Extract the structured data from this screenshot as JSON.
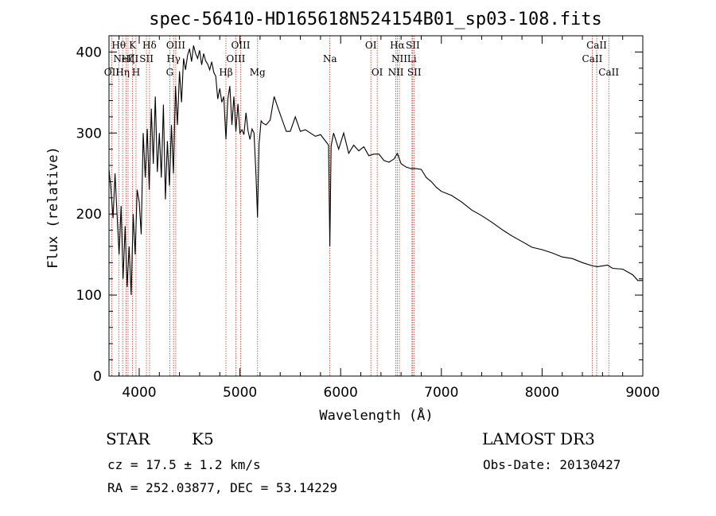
{
  "chart_data": {
    "type": "line",
    "title": "spec-56410-HD165618N524154B01_sp03-108.fits",
    "xlabel": "Wavelength (Å)",
    "ylabel": "Flux (relative)",
    "xlim": [
      3700,
      9000
    ],
    "ylim": [
      0,
      420
    ],
    "x_ticks": [
      4000,
      5000,
      6000,
      7000,
      8000,
      9000
    ],
    "y_ticks": [
      0,
      100,
      200,
      300,
      400
    ],
    "series": [
      {
        "name": "flux",
        "x": [
          3700,
          3720,
          3740,
          3760,
          3780,
          3800,
          3820,
          3840,
          3860,
          3880,
          3900,
          3920,
          3940,
          3960,
          3980,
          4000,
          4020,
          4040,
          4060,
          4080,
          4100,
          4120,
          4140,
          4160,
          4180,
          4200,
          4220,
          4240,
          4260,
          4280,
          4300,
          4320,
          4340,
          4360,
          4380,
          4400,
          4420,
          4440,
          4460,
          4480,
          4500,
          4520,
          4540,
          4560,
          4580,
          4600,
          4620,
          4640,
          4660,
          4680,
          4700,
          4720,
          4740,
          4760,
          4780,
          4800,
          4820,
          4840,
          4861,
          4880,
          4900,
          4920,
          4940,
          4960,
          4980,
          5000,
          5020,
          5040,
          5060,
          5080,
          5100,
          5120,
          5140,
          5160,
          5175,
          5190,
          5210,
          5230,
          5260,
          5300,
          5340,
          5380,
          5420,
          5460,
          5500,
          5550,
          5600,
          5650,
          5700,
          5750,
          5800,
          5850,
          5880,
          5893,
          5905,
          5930,
          5980,
          6030,
          6080,
          6130,
          6180,
          6230,
          6280,
          6330,
          6380,
          6430,
          6480,
          6530,
          6563,
          6600,
          6650,
          6700,
          6750,
          6800,
          6850,
          6900,
          6950,
          7000,
          7100,
          7200,
          7300,
          7400,
          7500,
          7600,
          7700,
          7800,
          7900,
          8000,
          8100,
          8200,
          8300,
          8400,
          8500,
          8550,
          8600,
          8650,
          8700,
          8800,
          8900,
          8950,
          9000
        ],
        "y": [
          255,
          230,
          195,
          250,
          200,
          150,
          210,
          120,
          185,
          110,
          160,
          100,
          200,
          150,
          230,
          215,
          175,
          300,
          245,
          305,
          230,
          330,
          262,
          345,
          252,
          300,
          245,
          335,
          218,
          290,
          235,
          310,
          250,
          358,
          310,
          376,
          338,
          392,
          378,
          396,
          404,
          388,
          408,
          398,
          392,
          402,
          384,
          398,
          389,
          385,
          378,
          388,
          375,
          370,
          342,
          355,
          338,
          345,
          292,
          342,
          358,
          310,
          345,
          302,
          336,
          300,
          304,
          298,
          325,
          303,
          292,
          305,
          300,
          248,
          196,
          286,
          315,
          312,
          310,
          316,
          345,
          330,
          316,
          302,
          302,
          320,
          302,
          304,
          300,
          296,
          298,
          290,
          285,
          160,
          284,
          300,
          280,
          300,
          275,
          285,
          278,
          283,
          272,
          274,
          274,
          266,
          264,
          268,
          275,
          262,
          258,
          256,
          256,
          255,
          245,
          240,
          233,
          228,
          223,
          215,
          205,
          198,
          190,
          181,
          173,
          166,
          159,
          156,
          152,
          147,
          145,
          140,
          136,
          135,
          136,
          137,
          133,
          132,
          125,
          118,
          118
        ]
      }
    ],
    "line_markers": [
      {
        "wavelength": 3727,
        "row": 2,
        "label": "OII"
      },
      {
        "wavelength": 3797,
        "row": 0,
        "label": "Hθ"
      },
      {
        "wavelength": 3835,
        "row": 2,
        "label": "Hη"
      },
      {
        "wavelength": 3869,
        "row": 1,
        "label": "NeIII"
      },
      {
        "wavelength": 3889,
        "row": 1,
        "label": "Hζ"
      },
      {
        "wavelength": 3934,
        "row": 0,
        "label": "K"
      },
      {
        "wavelength": 3968,
        "row": 2,
        "label": "H"
      },
      {
        "wavelength": 4072,
        "row": 1,
        "label": "SII"
      },
      {
        "wavelength": 4102,
        "row": 0,
        "label": "Hδ"
      },
      {
        "wavelength": 4304,
        "row": 2,
        "label": "G"
      },
      {
        "wavelength": 4341,
        "row": 1,
        "label": "Hγ"
      },
      {
        "wavelength": 4363,
        "row": 0,
        "label": "OIII"
      },
      {
        "wavelength": 4861,
        "row": 2,
        "label": "Hβ"
      },
      {
        "wavelength": 4959,
        "row": 1,
        "label": "OIII"
      },
      {
        "wavelength": 5007,
        "row": 0,
        "label": "OIII"
      },
      {
        "wavelength": 5175,
        "row": 2,
        "label": "Mg"
      },
      {
        "wavelength": 5893,
        "row": 1,
        "label": "Na"
      },
      {
        "wavelength": 6300,
        "row": 0,
        "label": "OI"
      },
      {
        "wavelength": 6363,
        "row": 2,
        "label": "OI"
      },
      {
        "wavelength": 6548,
        "row": 2,
        "label": "NII"
      },
      {
        "wavelength": 6563,
        "row": 0,
        "label": "Hα"
      },
      {
        "wavelength": 6583,
        "row": 1,
        "label": "NII"
      },
      {
        "wavelength": 6708,
        "row": 1,
        "label": "Li"
      },
      {
        "wavelength": 6716,
        "row": 0,
        "label": "SII"
      },
      {
        "wavelength": 6731,
        "row": 2,
        "label": "SII"
      },
      {
        "wavelength": 8498,
        "row": 1,
        "label": "CaII"
      },
      {
        "wavelength": 8542,
        "row": 0,
        "label": "CaII"
      },
      {
        "wavelength": 8662,
        "row": 2,
        "label": "CaII"
      }
    ],
    "colors": {
      "spectrum": "#000000",
      "markers": "#c0392b",
      "axes": "#000000"
    }
  },
  "info": {
    "class": "STAR",
    "subclass": "K5",
    "survey": "LAMOST DR3",
    "cz": "cz = 17.5 ± 1.2 km/s",
    "obs_date": "Obs-Date: 20130427",
    "coords": "RA = 252.03877, DEC =  53.14229"
  }
}
